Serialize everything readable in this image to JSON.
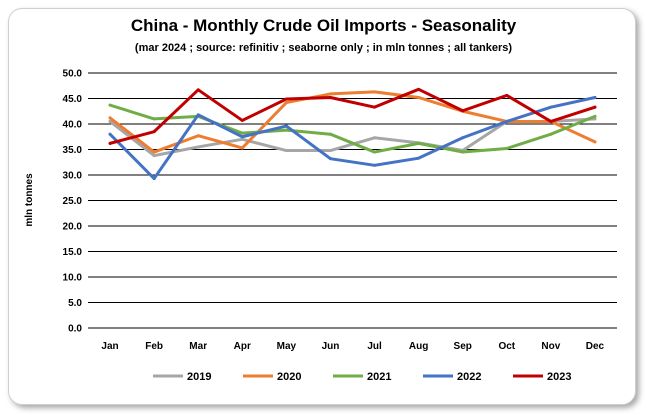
{
  "chart_data": {
    "type": "line",
    "title": "China - Monthly Crude Oil Imports - Seasonality",
    "subtitle": "(mar 2024 ; source: refinitiv ; seaborne only ; in mln tonnes ; all tankers)",
    "xlabel": "",
    "ylabel": "mln tonnes",
    "ylim": [
      0,
      50
    ],
    "ytick_step": 5,
    "ytick_labels": [
      "0.0",
      "5.0",
      "10.0",
      "15.0",
      "20.0",
      "25.0",
      "30.0",
      "35.0",
      "40.0",
      "45.0",
      "50.0"
    ],
    "categories": [
      "Jan",
      "Feb",
      "Mar",
      "Apr",
      "May",
      "Jun",
      "Jul",
      "Aug",
      "Sep",
      "Oct",
      "Nov",
      "Dec"
    ],
    "grid": "horizontal",
    "legend_position": "bottom",
    "series": [
      {
        "name": "2019",
        "color": "#a6a6a6",
        "values": [
          40.5,
          33.8,
          35.5,
          37.0,
          34.8,
          34.8,
          37.3,
          36.3,
          34.8,
          40.5,
          40.5,
          41.0
        ]
      },
      {
        "name": "2020",
        "color": "#ed7d31",
        "values": [
          41.2,
          34.5,
          37.7,
          35.3,
          44.2,
          45.9,
          46.3,
          45.2,
          42.5,
          40.5,
          40.5,
          36.5
        ]
      },
      {
        "name": "2021",
        "color": "#70ad47",
        "values": [
          43.7,
          41.0,
          41.5,
          38.2,
          38.8,
          38.0,
          34.5,
          36.2,
          34.5,
          35.2,
          38.0,
          41.5
        ]
      },
      {
        "name": "2022",
        "color": "#4472c4",
        "values": [
          38.0,
          29.3,
          41.8,
          37.5,
          39.6,
          33.2,
          31.9,
          33.3,
          37.3,
          40.5,
          43.3,
          45.2
        ]
      },
      {
        "name": "2023",
        "color": "#c00000",
        "values": [
          36.2,
          38.5,
          46.7,
          40.7,
          44.9,
          45.2,
          43.3,
          46.8,
          42.6,
          45.6,
          40.5,
          43.3
        ]
      }
    ]
  }
}
